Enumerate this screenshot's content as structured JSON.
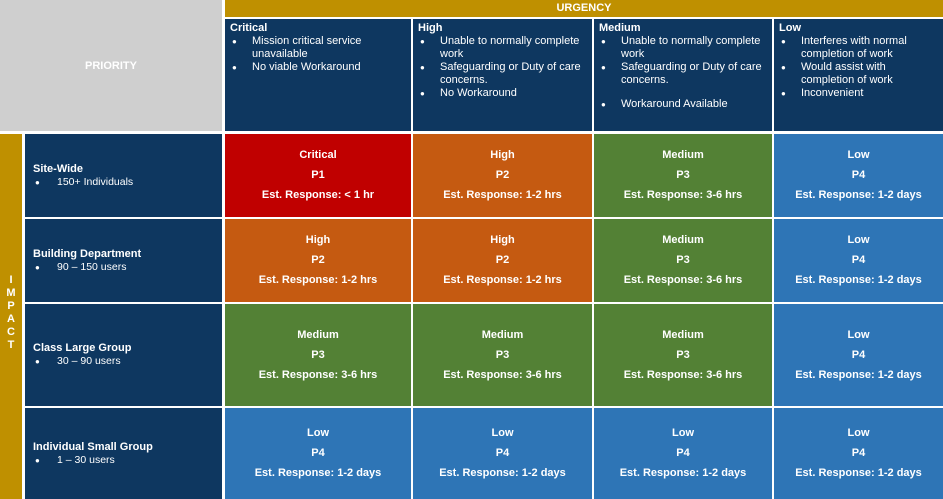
{
  "header": {
    "priority_label": "PRIORITY",
    "urgency_label": "URGENCY",
    "impact_letters": [
      "I",
      "M",
      "P",
      "A",
      "C",
      "T"
    ]
  },
  "urgency": [
    {
      "title": "Critical",
      "items": [
        "Mission critical service unavailable",
        "No viable Workaround"
      ]
    },
    {
      "title": "High",
      "items": [
        "Unable to normally complete work",
        "Safeguarding or Duty of care concerns.",
        "No Workaround"
      ]
    },
    {
      "title": "Medium",
      "items": [
        "Unable to normally complete work",
        "Safeguarding or Duty of care concerns.",
        "Workaround Available"
      ]
    },
    {
      "title": "Low",
      "items": [
        "Interferes with normal completion of work",
        "Would assist with completion of work",
        "Inconvenient"
      ]
    }
  ],
  "impact": [
    {
      "title": "Site-Wide",
      "detail": "150+ Individuals"
    },
    {
      "title": "Building  Department",
      "detail": "90 – 150 users"
    },
    {
      "title": "Class  Large Group",
      "detail": "30 – 90 users"
    },
    {
      "title": "Individual Small Group",
      "detail": "1 – 30 users"
    }
  ],
  "levels": {
    "critical": {
      "name": "Critical",
      "code": "P1",
      "response": "Est. Response: < 1 hr",
      "color": "#c00000"
    },
    "high": {
      "name": "High",
      "code": "P2",
      "response": "Est. Response: 1-2 hrs",
      "color": "#c55a11"
    },
    "medium": {
      "name": "Medium",
      "code": "P3",
      "response": "Est. Response: 3-6 hrs",
      "color": "#538135"
    },
    "low": {
      "name": "Low",
      "code": "P4",
      "response": "Est. Response: 1-2 days",
      "color": "#2e75b6"
    }
  },
  "matrix": [
    [
      "critical",
      "high",
      "medium",
      "low"
    ],
    [
      "high",
      "high",
      "medium",
      "low"
    ],
    [
      "medium",
      "medium",
      "medium",
      "low"
    ],
    [
      "low",
      "low",
      "low",
      "low"
    ]
  ],
  "colors": {
    "navy": "#0e3760",
    "gold": "#bf9000",
    "grey": "#cfcfcf"
  }
}
